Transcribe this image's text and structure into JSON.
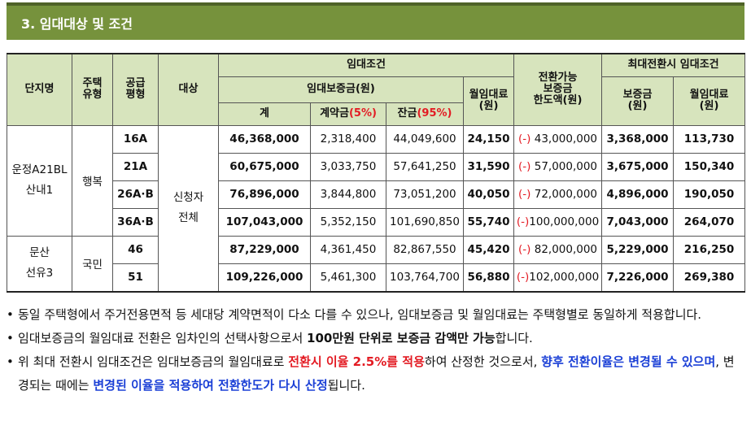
{
  "section": {
    "title": "3. 임대대상 및 조건"
  },
  "header": {
    "complex": "단지명",
    "housing_type": "주택\n유형",
    "supply_area": "공급\n평형",
    "target": "대상",
    "rental_conditions": "임대조건",
    "deposit": "임대보증금(원)",
    "monthly_rent": "월임대료\n(원)",
    "total": "계",
    "contract_label": "계약금",
    "contract_pct": "(5%)",
    "balance_label": "잔금",
    "balance_pct": "(95%)",
    "convertible": "전환가능\n보증금\n한도액(원)",
    "max_conversion": "최대전환시 임대조건",
    "max_deposit": "보증금\n(원)",
    "max_rent": "월임대료\n(원)"
  },
  "groups": [
    {
      "complex": "운정A21BL\n산내1",
      "housing_type": "행복"
    },
    {
      "complex": "문산\n선유3",
      "housing_type": "국민"
    }
  ],
  "target": "신청자\n전체",
  "rows": [
    {
      "area": "16A",
      "total": "46,368,000",
      "contract": "2,318,400",
      "balance": "44,049,600",
      "rent": "24,150",
      "conv_sign": "(-)",
      "conv_amount": " 43,000,000",
      "max_deposit": "3,368,000",
      "max_rent": "113,730"
    },
    {
      "area": "21A",
      "total": "60,675,000",
      "contract": "3,033,750",
      "balance": "57,641,250",
      "rent": "31,590",
      "conv_sign": "(-)",
      "conv_amount": " 57,000,000",
      "max_deposit": "3,675,000",
      "max_rent": "150,340"
    },
    {
      "area": "26A·B",
      "total": "76,896,000",
      "contract": "3,844,800",
      "balance": "73,051,200",
      "rent": "40,050",
      "conv_sign": "(-)",
      "conv_amount": " 72,000,000",
      "max_deposit": "4,896,000",
      "max_rent": "190,050"
    },
    {
      "area": "36A·B",
      "total": "107,043,000",
      "contract": "5,352,150",
      "balance": "101,690,850",
      "rent": "55,740",
      "conv_sign": "(-)",
      "conv_amount": "100,000,000",
      "max_deposit": "7,043,000",
      "max_rent": "264,070"
    },
    {
      "area": "46",
      "total": "87,229,000",
      "contract": "4,361,450",
      "balance": "82,867,550",
      "rent": "45,420",
      "conv_sign": "(-)",
      "conv_amount": " 82,000,000",
      "max_deposit": "5,229,000",
      "max_rent": "216,250"
    },
    {
      "area": "51",
      "total": "109,226,000",
      "contract": "5,461,300",
      "balance": "103,764,700",
      "rent": "56,880",
      "conv_sign": "(-)",
      "conv_amount": "102,000,000",
      "max_deposit": "7,226,000",
      "max_rent": "269,380"
    }
  ],
  "notes": {
    "bullet": "•",
    "n1": "동일 주택형에서 주거전용면적 등 세대당 계약면적이 다소 다를 수 있으나, 임대보증금 및 월임대료는 주택형별로 동일하게 적용합니다.",
    "n2_a": "임대보증금의 월임대료 전환은 임차인의 선택사항으로서 ",
    "n2_b": "100만원 단위로 보증금 감액만 가능",
    "n2_c": "합니다.",
    "n3_a": "위 최대 전환시 임대조건은 임대보증금의 월임대료로 ",
    "n3_b": "전환시 이율 2.5%를 적용",
    "n3_c": "하여 산정한 것으로서, ",
    "n3_d": "향후 전환이율은 변경될 수 있으며",
    "n3_e": ", 변경되는 때에는 ",
    "n3_f": "변경된 이율을 적용하여 전환한도가 다시 산정",
    "n3_g": "됩니다."
  }
}
